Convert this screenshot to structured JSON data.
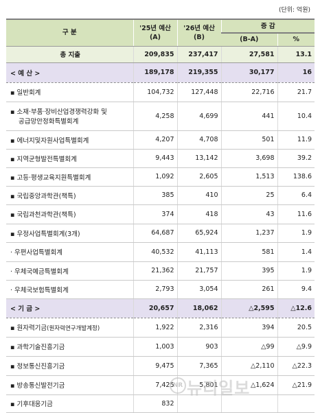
{
  "unit_label": "(단위: 억원)",
  "header": {
    "col_name": "구    분",
    "col_2025_line1": "'25년 예산",
    "col_2025_line2": "(A)",
    "col_2026_line1": "'26년 예산",
    "col_2026_line2": "(B)",
    "col_change": "증 감",
    "col_diff": "(B-A)",
    "col_pct": "%"
  },
  "rows": [
    {
      "type": "total",
      "name": "총 지출",
      "a": "209,835",
      "b": "237,417",
      "diff": "27,581",
      "pct": "13.1"
    },
    {
      "type": "section",
      "name": "< 예 산 >",
      "a": "189,178",
      "b": "219,355",
      "diff": "30,177",
      "pct": "16"
    },
    {
      "type": "item",
      "name": "▪ 일반회계",
      "a": "104,732",
      "b": "127,448",
      "diff": "22,716",
      "pct": "21.7"
    },
    {
      "type": "item2",
      "name": "▪ 소재·부품·장비산업경쟁력강화 및",
      "name2": "공급망안정화특별회계",
      "a": "4,258",
      "b": "4,699",
      "diff": "441",
      "pct": "10.4"
    },
    {
      "type": "item",
      "name": "▪ 에너지및자원사업특별회계",
      "a": "4,207",
      "b": "4,708",
      "diff": "501",
      "pct": "11.9"
    },
    {
      "type": "item",
      "name": "▪ 지역균형발전특별회계",
      "a": "9,443",
      "b": "13,142",
      "diff": "3,698",
      "pct": "39.2"
    },
    {
      "type": "item",
      "name": "▪ 고등·평생교육지원특별회계",
      "a": "1,092",
      "b": "2,605",
      "diff": "1,513",
      "pct": "138.6"
    },
    {
      "type": "item",
      "name": "▪ 국립중앙과학관(책특)",
      "a": "385",
      "b": "410",
      "diff": "25",
      "pct": "6.4"
    },
    {
      "type": "item",
      "name": "▪ 국립과천과학관(책특)",
      "a": "374",
      "b": "418",
      "diff": "43",
      "pct": "11.6"
    },
    {
      "type": "item",
      "name": "▪ 우정사업특별회계(3개)",
      "a": "64,687",
      "b": "65,924",
      "diff": "1,237",
      "pct": "1.9"
    },
    {
      "type": "item",
      "name": "  · 우편사업특별회계",
      "a": "40,532",
      "b": "41,113",
      "diff": "581",
      "pct": "1.4"
    },
    {
      "type": "item",
      "name": "  · 우체국예금특별회계",
      "a": "21,362",
      "b": "21,757",
      "diff": "395",
      "pct": "1.9"
    },
    {
      "type": "item",
      "name": "  · 우체국보험특별회계",
      "a": "2,793",
      "b": "3,054",
      "diff": "261",
      "pct": "9.4"
    },
    {
      "type": "section",
      "name": "< 기 금 >",
      "a": "20,657",
      "b": "18,062",
      "diff": "△2,595",
      "pct": "△12.6"
    },
    {
      "type": "item",
      "name": "▪ 원자력기금",
      "name_sub": "(원자력연구개발계정)",
      "a": "1,922",
      "b": "2,316",
      "diff": "394",
      "pct": "20.5"
    },
    {
      "type": "item",
      "name": "▪ 과학기술진흥기금",
      "a": "1,003",
      "b": "903",
      "diff": "△99",
      "pct": "△9.9"
    },
    {
      "type": "item",
      "name": "▪ 정보통신진흥기금",
      "a": "9,475",
      "b": "7,365",
      "diff": "△2,110",
      "pct": "△22.3"
    },
    {
      "type": "item",
      "name": "▪ 방송통신발전기금",
      "a": "7,425",
      "b": "5,801",
      "diff": "△1,624",
      "pct": "△21.9"
    },
    {
      "type": "item",
      "name": "▪ 기후대응기금",
      "a": "832",
      "b": "",
      "diff": "",
      "pct": ""
    }
  ],
  "watermark": {
    "circle": "NR",
    "text": "뉴리일보"
  }
}
